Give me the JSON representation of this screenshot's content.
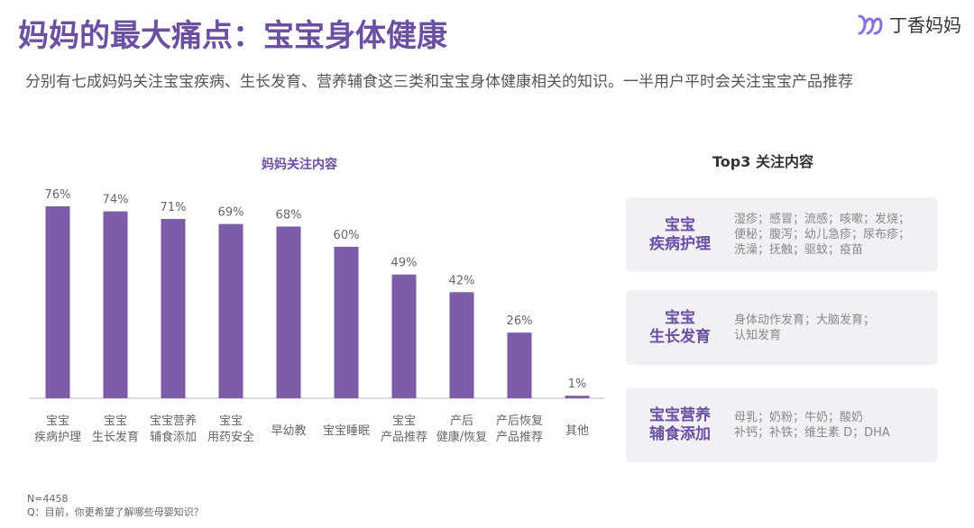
{
  "header": {
    "title": "妈妈的最大痛点：宝宝身体健康",
    "subtitle": "分别有七成妈妈关注宝宝疾病、生长发育、营养辅食这三类和宝宝身体健康相关的知识。一半用户平时会关注宝宝产品推荐",
    "logo_text": "丁香妈妈"
  },
  "colors": {
    "accent": "#7b5ea7",
    "card_bg": "#f1f0f4"
  },
  "chart_data": {
    "type": "bar",
    "title": "妈妈关注内容",
    "categories": [
      [
        "宝宝",
        "疾病护理"
      ],
      [
        "宝宝",
        "生长发育"
      ],
      [
        "宝宝营养",
        "辅食添加"
      ],
      [
        "宝宝",
        "用药安全"
      ],
      [
        "早幼教"
      ],
      [
        "宝宝睡眠"
      ],
      [
        "宝宝",
        "产品推荐"
      ],
      [
        "产后",
        "健康/恢复"
      ],
      [
        "产后恢复",
        "产品推荐"
      ],
      [
        "其他"
      ]
    ],
    "values": [
      76,
      74,
      71,
      69,
      68,
      60,
      49,
      42,
      26,
      1
    ],
    "value_labels": [
      "76%",
      "74%",
      "71%",
      "69%",
      "68%",
      "60%",
      "49%",
      "42%",
      "26%",
      "1%"
    ],
    "ylim": [
      0,
      80
    ],
    "xlabel": "",
    "ylabel": ""
  },
  "top3": {
    "title": "Top3 关注内容",
    "cards": [
      {
        "heading": [
          "宝宝",
          "疾病护理"
        ],
        "detail": [
          "湿疹；感冒；流感；咳嗽；发烧；",
          "便秘；腹泻；幼儿急疹；尿布疹；",
          "洗澡；抚触；驱蚊；疫苗"
        ]
      },
      {
        "heading": [
          "宝宝",
          "生长发育"
        ],
        "detail": [
          "身体动作发育；大脑发育；",
          "认知发育"
        ]
      },
      {
        "heading": [
          "宝宝营养",
          "辅食添加"
        ],
        "detail": [
          "母乳；奶粉；牛奶；酸奶",
          "补钙；补铁；维生素 D；DHA"
        ]
      }
    ]
  },
  "footer": {
    "n": "N=4458",
    "question": "Q：目前，你更希望了解哪些母婴知识？"
  }
}
